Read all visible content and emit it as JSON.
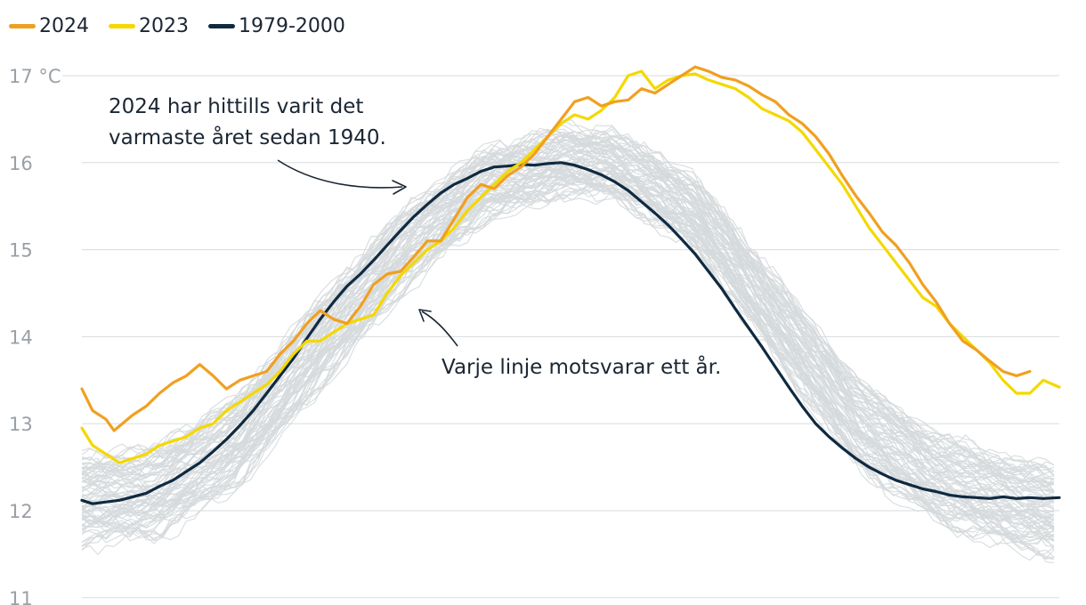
{
  "chart_data": {
    "type": "line",
    "title": "",
    "xlabel": "",
    "ylabel": "",
    "unit": "°C",
    "x_range": [
      1,
      366
    ],
    "ylim": [
      11,
      17
    ],
    "yticks": [
      11,
      12,
      13,
      14,
      15,
      16,
      17
    ],
    "ytick_labels": [
      "11",
      "12",
      "13",
      "14",
      "15",
      "16",
      "17 °C"
    ],
    "grid": "horizontal",
    "legend_position": "top-left",
    "colors": {
      "y2024": "#f0a020",
      "y2023": "#f5d800",
      "baseline": "#0f2a40",
      "years": "#d5d9dc"
    },
    "legend": [
      {
        "label": "2024",
        "color": "#f0a020"
      },
      {
        "label": "2023",
        "color": "#f5d800"
      },
      {
        "label": "1979-2000",
        "color": "#0f2a40"
      }
    ],
    "series": [
      {
        "name": "2024",
        "x": [
          1,
          5,
          10,
          13,
          20,
          25,
          30,
          35,
          40,
          45,
          50,
          55,
          60,
          65,
          70,
          75,
          80,
          85,
          90,
          95,
          100,
          105,
          110,
          115,
          120,
          125,
          130,
          135,
          140,
          145,
          150,
          155,
          160,
          165,
          170,
          175,
          180,
          185,
          190,
          195,
          200,
          205,
          210,
          215,
          220,
          225,
          230,
          235,
          240,
          245,
          250,
          255,
          260,
          265,
          270,
          275,
          280,
          285,
          290,
          295,
          300,
          305,
          310,
          315,
          320,
          325,
          330,
          335,
          340,
          345,
          350,
          355
        ],
        "values": [
          13.4,
          13.15,
          13.05,
          12.92,
          13.1,
          13.2,
          13.35,
          13.47,
          13.55,
          13.68,
          13.55,
          13.4,
          13.5,
          13.55,
          13.6,
          13.8,
          13.95,
          14.15,
          14.3,
          14.2,
          14.15,
          14.35,
          14.6,
          14.72,
          14.75,
          14.92,
          15.1,
          15.1,
          15.35,
          15.6,
          15.75,
          15.7,
          15.85,
          15.95,
          16.1,
          16.3,
          16.5,
          16.7,
          16.75,
          16.65,
          16.7,
          16.72,
          16.85,
          16.8,
          16.9,
          17.0,
          17.1,
          17.05,
          16.98,
          16.95,
          16.88,
          16.78,
          16.7,
          16.55,
          16.45,
          16.3,
          16.1,
          15.85,
          15.62,
          15.42,
          15.2,
          15.05,
          14.85,
          14.6,
          14.4,
          14.15,
          13.95,
          13.85,
          13.72,
          13.6,
          13.55,
          13.6
        ]
      },
      {
        "name": "2023",
        "x": [
          1,
          5,
          10,
          15,
          20,
          25,
          30,
          35,
          40,
          45,
          50,
          55,
          60,
          65,
          70,
          75,
          80,
          85,
          90,
          95,
          100,
          105,
          110,
          115,
          120,
          125,
          130,
          135,
          140,
          145,
          150,
          155,
          160,
          165,
          170,
          175,
          180,
          185,
          190,
          195,
          200,
          205,
          210,
          215,
          220,
          225,
          230,
          235,
          240,
          245,
          250,
          255,
          260,
          265,
          270,
          275,
          280,
          285,
          290,
          295,
          300,
          305,
          310,
          315,
          320,
          325,
          330,
          335,
          340,
          345,
          350,
          355,
          360,
          366
        ],
        "values": [
          12.95,
          12.75,
          12.65,
          12.55,
          12.6,
          12.65,
          12.75,
          12.8,
          12.85,
          12.95,
          13.0,
          13.15,
          13.25,
          13.35,
          13.45,
          13.6,
          13.8,
          13.95,
          13.95,
          14.05,
          14.15,
          14.2,
          14.25,
          14.5,
          14.7,
          14.85,
          15.0,
          15.1,
          15.25,
          15.45,
          15.6,
          15.75,
          15.9,
          16.0,
          16.15,
          16.3,
          16.45,
          16.55,
          16.5,
          16.6,
          16.75,
          17.0,
          17.05,
          16.85,
          16.95,
          17.0,
          17.02,
          16.95,
          16.9,
          16.85,
          16.75,
          16.62,
          16.55,
          16.48,
          16.35,
          16.15,
          15.95,
          15.75,
          15.5,
          15.25,
          15.05,
          14.85,
          14.65,
          14.45,
          14.35,
          14.15,
          14.0,
          13.85,
          13.7,
          13.5,
          13.35,
          13.35,
          13.5,
          13.42
        ]
      },
      {
        "name": "1979-2000",
        "x": [
          1,
          5,
          10,
          15,
          20,
          25,
          30,
          35,
          40,
          45,
          50,
          55,
          60,
          65,
          70,
          75,
          80,
          85,
          90,
          95,
          100,
          105,
          110,
          115,
          120,
          125,
          130,
          135,
          140,
          145,
          150,
          155,
          160,
          165,
          170,
          175,
          180,
          185,
          190,
          195,
          200,
          205,
          210,
          215,
          220,
          225,
          230,
          235,
          240,
          245,
          250,
          255,
          260,
          265,
          270,
          275,
          280,
          285,
          290,
          295,
          300,
          305,
          310,
          315,
          320,
          325,
          330,
          335,
          340,
          345,
          350,
          355,
          360,
          366
        ],
        "values": [
          12.12,
          12.08,
          12.1,
          12.12,
          12.16,
          12.2,
          12.28,
          12.35,
          12.45,
          12.55,
          12.68,
          12.82,
          12.98,
          13.15,
          13.35,
          13.55,
          13.75,
          13.98,
          14.2,
          14.4,
          14.58,
          14.72,
          14.88,
          15.05,
          15.22,
          15.38,
          15.52,
          15.65,
          15.75,
          15.82,
          15.9,
          15.95,
          15.96,
          15.98,
          15.97,
          15.99,
          16.0,
          15.97,
          15.92,
          15.86,
          15.78,
          15.68,
          15.55,
          15.42,
          15.28,
          15.12,
          14.95,
          14.75,
          14.55,
          14.32,
          14.1,
          13.88,
          13.65,
          13.42,
          13.2,
          13.0,
          12.85,
          12.72,
          12.6,
          12.5,
          12.42,
          12.35,
          12.3,
          12.25,
          12.22,
          12.18,
          12.16,
          12.15,
          12.14,
          12.16,
          12.14,
          12.15,
          12.14,
          12.15
        ]
      }
    ],
    "background_years": {
      "label": "Varje linje motsvarar ett år.",
      "count": 84,
      "color": "#d5d9dc",
      "x": [
        1,
        30,
        60,
        90,
        120,
        150,
        180,
        200,
        230,
        260,
        290,
        320,
        350,
        366
      ],
      "mean": [
        12.1,
        12.2,
        12.8,
        13.9,
        14.95,
        15.7,
        16.0,
        15.95,
        15.4,
        14.2,
        13.0,
        12.35,
        12.05,
        11.95
      ],
      "spread": [
        0.95,
        0.95,
        0.95,
        0.95,
        0.85,
        0.75,
        0.7,
        0.7,
        0.75,
        0.85,
        0.95,
        0.95,
        0.95,
        0.95
      ]
    },
    "annotations": [
      {
        "text": [
          "2024 har hittills varit det",
          "varmaste året sedan 1940."
        ]
      },
      {
        "text": [
          "Varje linje motsvarar ett år."
        ]
      }
    ]
  }
}
